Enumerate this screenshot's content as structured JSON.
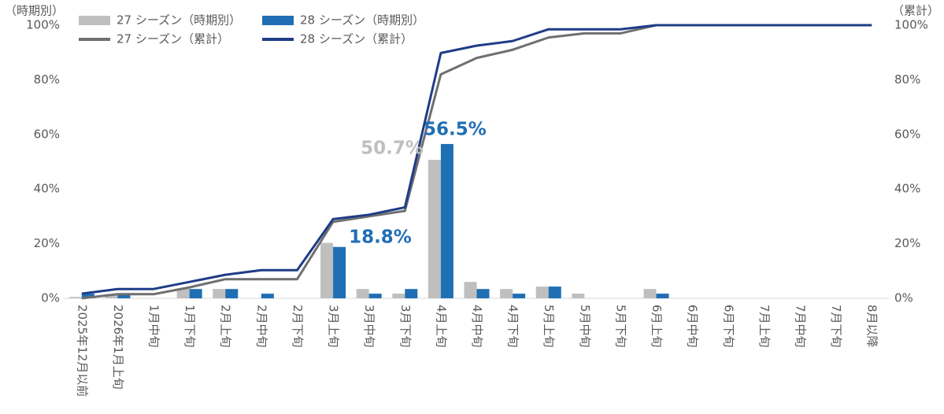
{
  "chart_data": {
    "type": "bar-line",
    "y_axis_label": "（時期別）",
    "y2_axis_label": "（累計）",
    "categories": [
      "2025年12月以前",
      "2026年1月上旬",
      "1月中旬",
      "1月下旬",
      "2月上旬",
      "2月中旬",
      "2月下旬",
      "3月上旬",
      "3月中旬",
      "3月下旬",
      "4月上旬",
      "4月中旬",
      "4月下旬",
      "5月上旬",
      "5月中旬",
      "5月下旬",
      "6月上旬",
      "6月中旬",
      "6月下旬",
      "7月上旬",
      "7月中旬",
      "7月下旬",
      "8月以降"
    ],
    "series": [
      {
        "name": "27 シーズン（時期別）",
        "kind": "bar",
        "color": "#bfbfbf",
        "values": [
          0.5,
          1.5,
          0,
          3.5,
          3.4,
          0,
          0,
          20.3,
          3.4,
          1.7,
          50.7,
          6,
          3.4,
          4.3,
          1.7,
          0,
          3.4,
          0,
          0,
          0,
          0,
          0,
          0
        ],
        "value_labels": [
          null,
          null,
          null,
          null,
          null,
          null,
          null,
          null,
          null,
          null,
          "50.7%",
          null,
          null,
          null,
          null,
          null,
          null,
          null,
          null,
          null,
          null,
          null,
          null
        ]
      },
      {
        "name": "28 シーズン（時期別）",
        "kind": "bar",
        "color": "#1f6fb4",
        "values": [
          1.7,
          1.7,
          0,
          3.4,
          3.4,
          1.7,
          0,
          18.8,
          1.7,
          3.4,
          56.5,
          3.4,
          1.7,
          4.3,
          0,
          0,
          1.7,
          0,
          0,
          0,
          0,
          0,
          0
        ],
        "value_labels": [
          null,
          null,
          null,
          null,
          null,
          null,
          null,
          "18.8%",
          null,
          null,
          "56.5%",
          null,
          null,
          null,
          null,
          null,
          null,
          null,
          null,
          null,
          null,
          null,
          null
        ]
      },
      {
        "name": "27 シーズン（累計）",
        "kind": "line",
        "axis": "y2",
        "color": "#6f6f6f",
        "values": [
          0,
          1.5,
          1.5,
          4,
          7,
          7,
          7,
          28,
          30,
          32,
          82,
          88,
          91,
          95.5,
          97,
          97,
          100,
          100,
          100,
          100,
          100,
          100,
          100
        ]
      },
      {
        "name": "28 シーズン（累計）",
        "kind": "line",
        "axis": "y2",
        "color": "#1f3c88",
        "values": [
          1.7,
          3.4,
          3.4,
          6,
          8.6,
          10.3,
          10.3,
          29,
          30.6,
          33.3,
          89.8,
          92.5,
          94.2,
          98.5,
          98.5,
          98.5,
          100,
          100,
          100,
          100,
          100,
          100,
          100
        ]
      }
    ],
    "ylim": [
      0,
      100
    ],
    "yticks": [
      {
        "value": 0,
        "label": "0%"
      },
      {
        "value": 20,
        "label": "20%"
      },
      {
        "value": 40,
        "label": "40%"
      },
      {
        "value": 60,
        "label": "60%"
      },
      {
        "value": 80,
        "label": "80%"
      },
      {
        "value": 100,
        "label": "100%"
      }
    ],
    "y2lim": [
      0,
      100
    ],
    "y2ticks": [
      {
        "value": 0,
        "label": "0%"
      },
      {
        "value": 20,
        "label": "20%"
      },
      {
        "value": 40,
        "label": "40%"
      },
      {
        "value": 60,
        "label": "60%"
      },
      {
        "value": 80,
        "label": "80%"
      },
      {
        "value": 100,
        "label": "100%"
      }
    ]
  }
}
